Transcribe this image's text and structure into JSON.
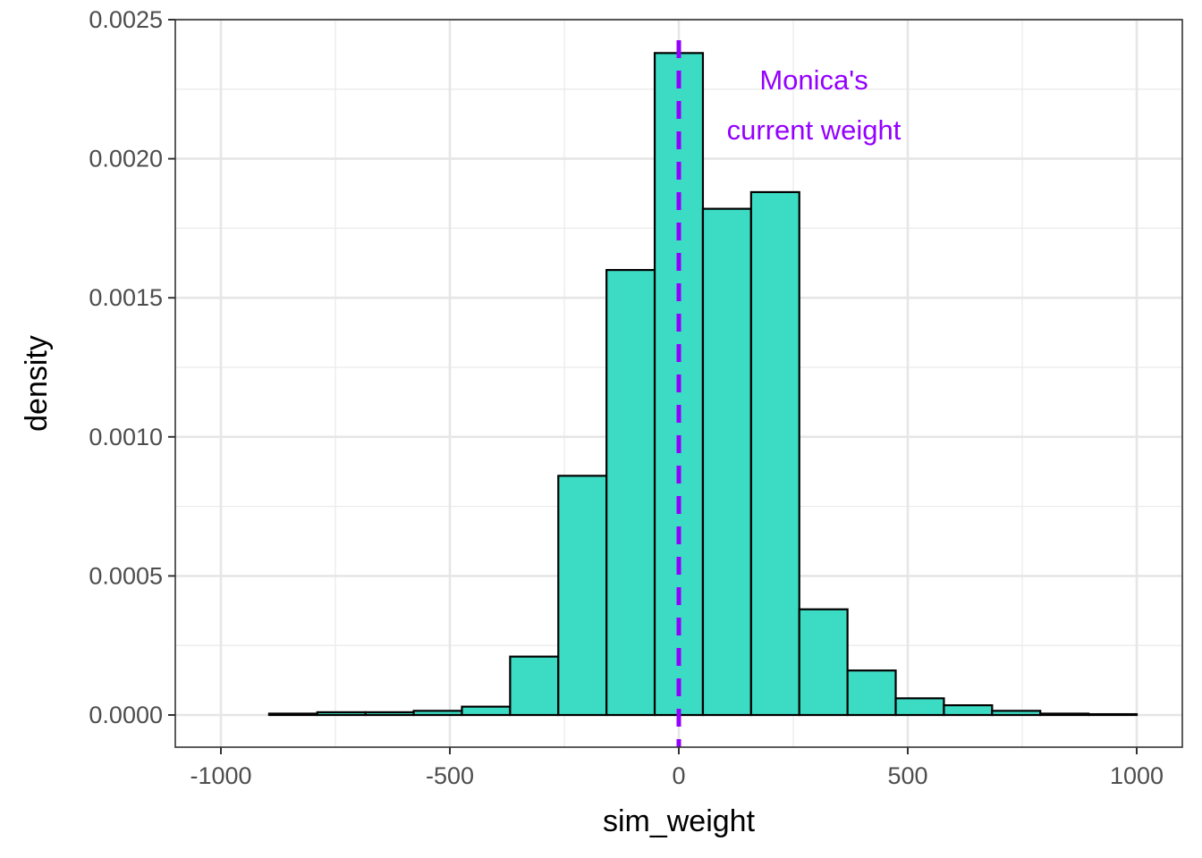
{
  "chart_data": {
    "type": "histogram",
    "xlabel": "sim_weight",
    "ylabel": "density",
    "xlim": [
      -1000,
      1000
    ],
    "ylim": [
      0,
      0.0025
    ],
    "x_ticks": [
      -1000,
      -500,
      0,
      500,
      1000
    ],
    "x_tick_labels": [
      "-1000",
      "-500",
      "0",
      "500",
      "1000"
    ],
    "y_ticks": [
      0,
      0.0005,
      0.001,
      0.0015,
      0.002,
      0.0025
    ],
    "y_tick_labels": [
      "0.0000",
      "0.0005",
      "0.0010",
      "0.0015",
      "0.0020",
      "0.0025"
    ],
    "bin_width": 105.26,
    "bins": [
      {
        "x_start": -1000,
        "x_end": -894.74,
        "density": 0.0
      },
      {
        "x_start": -894.74,
        "x_end": -789.47,
        "density": 5e-06
      },
      {
        "x_start": -789.47,
        "x_end": -684.21,
        "density": 1e-05
      },
      {
        "x_start": -684.21,
        "x_end": -578.95,
        "density": 1e-05
      },
      {
        "x_start": -578.95,
        "x_end": -473.68,
        "density": 1.5e-05
      },
      {
        "x_start": -473.68,
        "x_end": -368.42,
        "density": 3e-05
      },
      {
        "x_start": -368.42,
        "x_end": -263.16,
        "density": 0.00021
      },
      {
        "x_start": -263.16,
        "x_end": -157.89,
        "density": 0.00086
      },
      {
        "x_start": -157.89,
        "x_end": -52.63,
        "density": 0.0016
      },
      {
        "x_start": -52.63,
        "x_end": 52.63,
        "density": 0.00238
      },
      {
        "x_start": 52.63,
        "x_end": 157.89,
        "density": 0.00182
      },
      {
        "x_start": 157.89,
        "x_end": 263.16,
        "density": 0.00188
      },
      {
        "x_start": 263.16,
        "x_end": 368.42,
        "density": 0.00038
      },
      {
        "x_start": 368.42,
        "x_end": 473.68,
        "density": 0.00016
      },
      {
        "x_start": 473.68,
        "x_end": 578.95,
        "density": 6e-05
      },
      {
        "x_start": 578.95,
        "x_end": 684.21,
        "density": 3.5e-05
      },
      {
        "x_start": 684.21,
        "x_end": 789.47,
        "density": 1.5e-05
      },
      {
        "x_start": 789.47,
        "x_end": 894.74,
        "density": 5e-06
      },
      {
        "x_start": 894.74,
        "x_end": 1000,
        "density": 3e-06
      }
    ],
    "vline": {
      "x": 0,
      "style": "dashed",
      "color": "#9400ff"
    },
    "annotation": {
      "lines": [
        "Monica's",
        "current weight"
      ],
      "x": 295,
      "color": "#9400ff"
    },
    "bar_fill": "#3cdbc4",
    "bar_stroke": "#000000",
    "grid": true,
    "theme": "bw"
  }
}
